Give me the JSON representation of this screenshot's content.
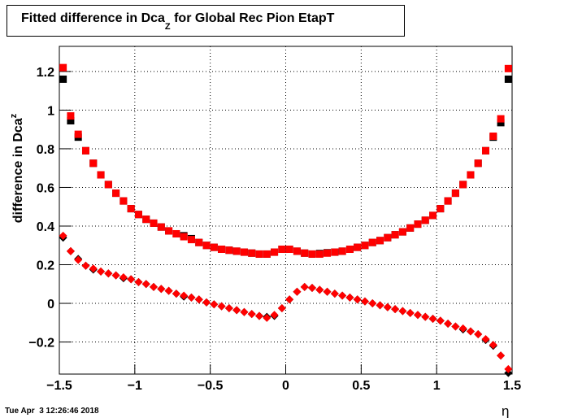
{
  "chart_data": {
    "type": "scatter",
    "title": {
      "main": "Fitted difference in Dca",
      "sub": "Z",
      "rest": " for Global Rec Pion EtapT"
    },
    "y_label": {
      "main": "difference in Dca",
      "sub": "z"
    },
    "x_label": "η",
    "timestamp": "Tue Apr  3 12:26:46 2018",
    "xlim": [
      -1.5,
      1.5
    ],
    "ylim": [
      -0.366,
      1.33
    ],
    "xticks": [
      {
        "value": -1.5,
        "label": "−1.5"
      },
      {
        "value": -1,
        "label": "−1"
      },
      {
        "value": -0.5,
        "label": "−0.5"
      },
      0,
      0.5,
      1,
      1.5
    ],
    "yticks": [
      {
        "value": -0.2,
        "label": "−0.2"
      },
      0,
      0.2,
      0.4,
      0.6,
      0.8,
      1,
      1.2
    ],
    "grid": true,
    "x": [
      -1.475,
      -1.425,
      -1.375,
      -1.325,
      -1.275,
      -1.225,
      -1.175,
      -1.125,
      -1.075,
      -1.025,
      -0.975,
      -0.925,
      -0.875,
      -0.825,
      -0.775,
      -0.725,
      -0.675,
      -0.625,
      -0.575,
      -0.525,
      -0.475,
      -0.425,
      -0.375,
      -0.325,
      -0.275,
      -0.225,
      -0.175,
      -0.125,
      -0.075,
      -0.025,
      0.025,
      0.075,
      0.125,
      0.175,
      0.225,
      0.275,
      0.325,
      0.375,
      0.425,
      0.475,
      0.525,
      0.575,
      0.625,
      0.675,
      0.725,
      0.775,
      0.825,
      0.875,
      0.925,
      0.975,
      1.025,
      1.075,
      1.125,
      1.175,
      1.225,
      1.275,
      1.325,
      1.375,
      1.425,
      1.475
    ],
    "series": [
      {
        "color": "#000000",
        "marker": "square",
        "values": [
          1.16,
          0.945,
          0.86,
          0.79,
          0.725,
          0.665,
          0.615,
          0.57,
          0.53,
          0.49,
          0.46,
          0.435,
          0.415,
          0.395,
          0.375,
          0.36,
          0.35,
          0.335,
          0.315,
          0.3,
          0.29,
          0.28,
          0.275,
          0.27,
          0.265,
          0.26,
          0.255,
          0.255,
          0.265,
          0.28,
          0.28,
          0.27,
          0.26,
          0.255,
          0.258,
          0.262,
          0.265,
          0.27,
          0.28,
          0.29,
          0.3,
          0.315,
          0.325,
          0.34,
          0.355,
          0.37,
          0.39,
          0.41,
          0.43,
          0.455,
          0.49,
          0.53,
          0.57,
          0.615,
          0.665,
          0.725,
          0.79,
          0.86,
          0.935,
          1.16
        ]
      },
      {
        "color": "#ff0000",
        "marker": "square",
        "values": [
          1.22,
          0.97,
          0.875,
          0.79,
          0.725,
          0.665,
          0.615,
          0.57,
          0.53,
          0.49,
          0.46,
          0.435,
          0.415,
          0.395,
          0.375,
          0.36,
          0.345,
          0.33,
          0.315,
          0.3,
          0.29,
          0.28,
          0.275,
          0.27,
          0.265,
          0.26,
          0.255,
          0.255,
          0.265,
          0.28,
          0.28,
          0.27,
          0.26,
          0.255,
          0.255,
          0.26,
          0.265,
          0.27,
          0.28,
          0.29,
          0.3,
          0.315,
          0.325,
          0.34,
          0.355,
          0.37,
          0.39,
          0.41,
          0.43,
          0.455,
          0.49,
          0.53,
          0.57,
          0.615,
          0.665,
          0.725,
          0.79,
          0.865,
          0.955,
          1.215
        ]
      },
      {
        "color": "#000000",
        "marker": "diamond",
        "values": [
          0.34,
          0.27,
          0.23,
          0.195,
          0.175,
          0.165,
          0.155,
          0.145,
          0.13,
          0.125,
          0.11,
          0.1,
          0.085,
          0.075,
          0.065,
          0.05,
          0.035,
          0.03,
          0.02,
          0.005,
          -0.005,
          -0.015,
          -0.025,
          -0.035,
          -0.045,
          -0.055,
          -0.065,
          -0.07,
          -0.065,
          -0.025,
          0.02,
          0.06,
          0.085,
          0.08,
          0.07,
          0.06,
          0.05,
          0.04,
          0.03,
          0.02,
          0.01,
          0.0,
          -0.01,
          -0.02,
          -0.03,
          -0.04,
          -0.05,
          -0.06,
          -0.07,
          -0.08,
          -0.09,
          -0.105,
          -0.12,
          -0.135,
          -0.145,
          -0.16,
          -0.19,
          -0.22,
          -0.27,
          -0.36
        ]
      },
      {
        "color": "#ff0000",
        "marker": "diamond",
        "values": [
          0.35,
          0.27,
          0.225,
          0.195,
          0.18,
          0.165,
          0.155,
          0.145,
          0.135,
          0.125,
          0.11,
          0.1,
          0.085,
          0.075,
          0.065,
          0.05,
          0.04,
          0.03,
          0.02,
          0.005,
          -0.005,
          -0.015,
          -0.025,
          -0.035,
          -0.045,
          -0.055,
          -0.065,
          -0.075,
          -0.06,
          -0.025,
          0.02,
          0.06,
          0.085,
          0.08,
          0.07,
          0.06,
          0.05,
          0.04,
          0.03,
          0.02,
          0.01,
          0.0,
          -0.01,
          -0.02,
          -0.03,
          -0.04,
          -0.05,
          -0.06,
          -0.07,
          -0.08,
          -0.09,
          -0.105,
          -0.12,
          -0.13,
          -0.145,
          -0.16,
          -0.185,
          -0.215,
          -0.27,
          -0.34
        ]
      }
    ]
  }
}
